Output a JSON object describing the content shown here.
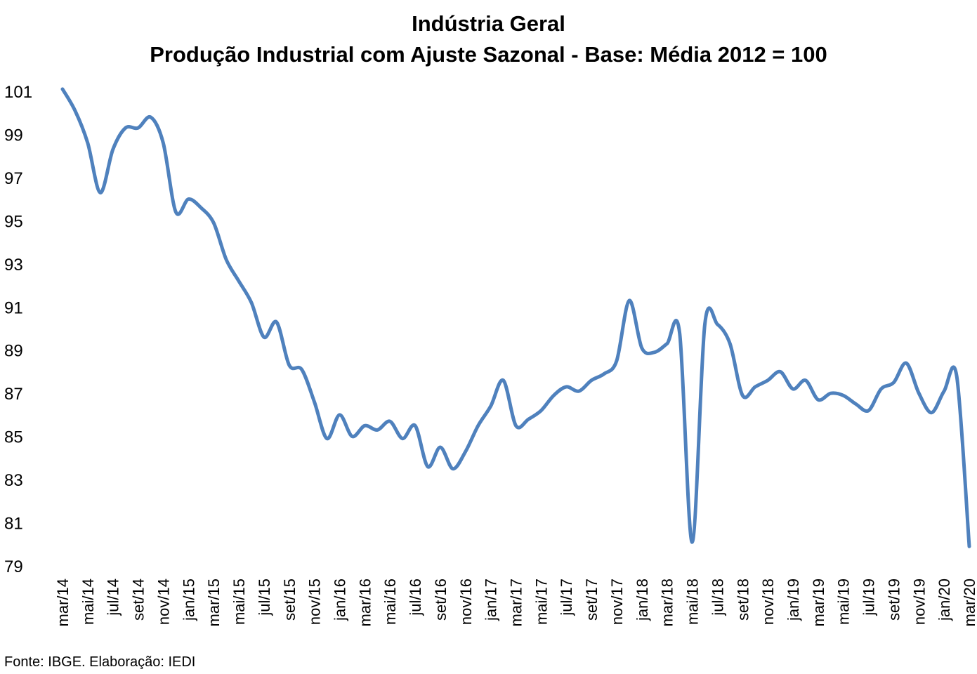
{
  "chart_data": {
    "type": "line",
    "title": "Indústria Geral",
    "subtitle": "Produção Industrial com Ajuste Sazonal - Base: Média 2012 = 100",
    "xlabel": "",
    "ylabel": "",
    "ylim": [
      79,
      101
    ],
    "yticks": [
      79,
      81,
      83,
      85,
      87,
      89,
      91,
      93,
      95,
      97,
      99,
      101
    ],
    "grid": false,
    "legend": "none",
    "series_color": "#4F81BD",
    "x": [
      "mar/14",
      "abr/14",
      "mai/14",
      "jun/14",
      "jul/14",
      "ago/14",
      "set/14",
      "out/14",
      "nov/14",
      "dez/14",
      "jan/15",
      "fev/15",
      "mar/15",
      "abr/15",
      "mai/15",
      "jun/15",
      "jul/15",
      "ago/15",
      "set/15",
      "out/15",
      "nov/15",
      "dez/15",
      "jan/16",
      "fev/16",
      "mar/16",
      "abr/16",
      "mai/16",
      "jun/16",
      "jul/16",
      "ago/16",
      "set/16",
      "out/16",
      "nov/16",
      "dez/16",
      "jan/17",
      "fev/17",
      "mar/17",
      "abr/17",
      "mai/17",
      "jun/17",
      "jul/17",
      "ago/17",
      "set/17",
      "out/17",
      "nov/17",
      "dez/17",
      "jan/18",
      "fev/18",
      "mar/18",
      "abr/18",
      "mai/18",
      "jun/18",
      "jul/18",
      "ago/18",
      "set/18",
      "out/18",
      "nov/18",
      "dez/18",
      "jan/19",
      "fev/19",
      "mar/19",
      "abr/19",
      "mai/19",
      "jun/19",
      "jul/19",
      "ago/19",
      "set/19",
      "out/19",
      "nov/19",
      "dez/19",
      "jan/20",
      "fev/20",
      "mar/20"
    ],
    "tick_labels": [
      "mar/14",
      "mai/14",
      "jul/14",
      "set/14",
      "nov/14",
      "jan/15",
      "mar/15",
      "mai/15",
      "jul/15",
      "set/15",
      "nov/15",
      "jan/16",
      "mar/16",
      "mai/16",
      "jul/16",
      "set/16",
      "nov/16",
      "jan/17",
      "mar/17",
      "mai/17",
      "jul/17",
      "set/17",
      "nov/17",
      "jan/18",
      "mar/18",
      "mai/18",
      "jul/18",
      "set/18",
      "nov/18",
      "jan/19",
      "mar/19",
      "mai/19",
      "jul/19",
      "set/19",
      "nov/19",
      "jan/20",
      "mar/20"
    ],
    "series": [
      {
        "values": [
          101.1,
          100.1,
          98.6,
          96.3,
          98.3,
          99.3,
          99.3,
          99.8,
          98.6,
          95.4,
          96.0,
          95.6,
          94.9,
          93.2,
          92.2,
          91.2,
          89.6,
          90.3,
          88.3,
          88.1,
          86.6,
          84.9,
          86.0,
          85.0,
          85.5,
          85.3,
          85.7,
          84.9,
          85.5,
          83.6,
          84.5,
          83.5,
          84.3,
          85.5,
          86.4,
          87.6,
          85.5,
          85.8,
          86.2,
          86.9,
          87.3,
          87.1,
          87.6,
          87.9,
          88.5,
          91.3,
          89.1,
          88.9,
          89.3,
          89.8,
          80.1,
          90.2,
          90.2,
          89.3,
          86.9,
          87.3,
          87.6,
          88.0,
          87.2,
          87.6,
          86.7,
          87.0,
          86.9,
          86.5,
          86.2,
          87.2,
          87.5,
          88.4,
          87.0,
          86.1,
          87.1,
          87.8,
          79.9
        ]
      }
    ]
  },
  "source_note": "Fonte: IBGE. Elaboração: IEDI"
}
